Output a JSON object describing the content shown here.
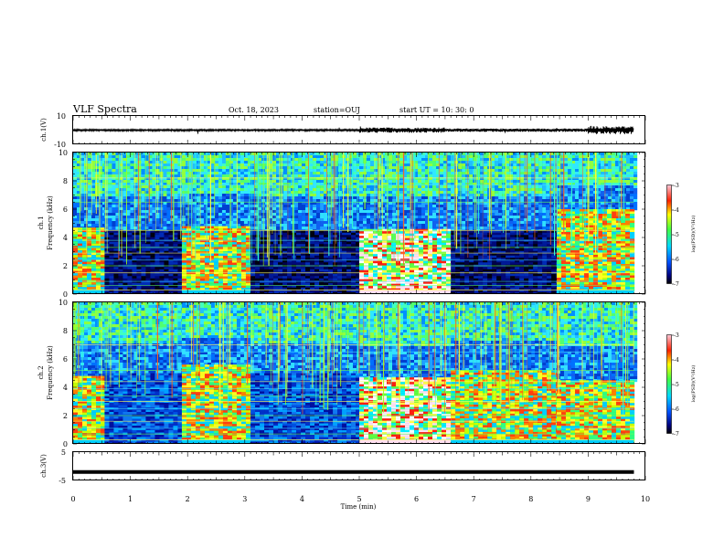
{
  "header": {
    "title": "VLF Spectra",
    "date": "Oct. 18, 2023",
    "station": "station=OUJ",
    "start": "start  UT =   10: 30: 0"
  },
  "chart_data": [
    {
      "type": "line",
      "panel": "ch1-waveform",
      "ylabel": "ch.1(V)",
      "ylim": [
        -10,
        10
      ],
      "yticks": [
        "10",
        "-10"
      ],
      "baseline_value": 0,
      "segments": [
        {
          "t": [
            0,
            5.0
          ],
          "amplitude": 0.6
        },
        {
          "t": [
            5.0,
            6.5
          ],
          "amplitude": 1.6
        },
        {
          "t": [
            6.5,
            9.0
          ],
          "amplitude": 1.0
        },
        {
          "t": [
            9.0,
            9.8
          ],
          "amplitude": 2.4
        }
      ],
      "spikes": [
        {
          "t": 2.18,
          "amp": -2.6
        },
        {
          "t": 4.65,
          "amp": 1.8
        },
        {
          "t": 5.02,
          "amp": 2.6
        },
        {
          "t": 7.55,
          "amp": -2.0
        },
        {
          "t": 8.45,
          "amp": 1.6
        },
        {
          "t": 9.05,
          "amp": 3.0
        },
        {
          "t": 9.6,
          "amp": 2.7
        }
      ]
    },
    {
      "type": "heatmap",
      "panel": "ch1-spectrogram",
      "ylabel": "Frequency  (kHz)",
      "channel_label": "ch.1",
      "ylim": [
        0,
        10
      ],
      "yticks": [
        "0",
        "2",
        "4",
        "6",
        "8",
        "10"
      ],
      "xlim": [
        0,
        10
      ],
      "data_end_min": 9.8,
      "colorbar": {
        "label": "log(PSD)(V²/Hz)",
        "range": [
          -7,
          -3
        ],
        "ticks": [
          "-3",
          "-4",
          "-5",
          "-6",
          "-7"
        ]
      },
      "segments": [
        {
          "t0": 0.0,
          "t1": 0.55,
          "level": "high",
          "band": [
            0.3,
            4.7
          ]
        },
        {
          "t0": 0.55,
          "t1": 1.9,
          "level": "low",
          "band": [
            0,
            4.5
          ]
        },
        {
          "t0": 1.9,
          "t1": 3.1,
          "level": "high",
          "band": [
            0.3,
            4.8
          ]
        },
        {
          "t0": 3.1,
          "t1": 5.0,
          "level": "low",
          "band": [
            0,
            4.5
          ]
        },
        {
          "t0": 5.0,
          "t1": 6.6,
          "level": "veryhigh",
          "band": [
            0.3,
            4.6
          ]
        },
        {
          "t0": 6.6,
          "t1": 8.45,
          "level": "low",
          "band": [
            0,
            4.5
          ]
        },
        {
          "t0": 8.45,
          "t1": 9.8,
          "level": "high",
          "band": [
            0.3,
            6.0
          ]
        }
      ],
      "lines_khz": [
        0.3,
        0.6,
        0.9,
        1.5,
        2.0,
        2.4,
        2.9,
        3.3,
        3.8,
        4.5,
        6.5,
        7.7,
        8.2
      ]
    },
    {
      "type": "heatmap",
      "panel": "ch2-spectrogram",
      "ylabel": "Frequency  (kHz)",
      "channel_label": "ch.2",
      "ylim": [
        0,
        10
      ],
      "yticks": [
        "0",
        "2",
        "4",
        "6",
        "8",
        "10"
      ],
      "xlim": [
        0,
        10
      ],
      "data_end_min": 9.8,
      "colorbar": {
        "label": "log(PSD)(V²/Hz)",
        "range": [
          -7,
          -3
        ],
        "ticks": [
          "-3",
          "-4",
          "-5",
          "-6",
          "-7"
        ]
      },
      "segments": [
        {
          "t0": 0.0,
          "t1": 0.55,
          "level": "high",
          "band": [
            0.3,
            4.8
          ]
        },
        {
          "t0": 0.55,
          "t1": 1.9,
          "level": "mid",
          "band": [
            0,
            5.0
          ]
        },
        {
          "t0": 1.9,
          "t1": 3.1,
          "level": "high",
          "band": [
            0.3,
            5.6
          ]
        },
        {
          "t0": 3.1,
          "t1": 5.0,
          "level": "mid",
          "band": [
            0,
            5.0
          ]
        },
        {
          "t0": 5.0,
          "t1": 6.6,
          "level": "veryhigh",
          "band": [
            0.3,
            4.7
          ]
        },
        {
          "t0": 6.6,
          "t1": 8.45,
          "level": "high",
          "band": [
            0.3,
            5.2
          ]
        },
        {
          "t0": 8.45,
          "t1": 9.8,
          "level": "high",
          "band": [
            0.3,
            4.5
          ]
        }
      ],
      "lines_khz": [
        0.3,
        0.7,
        1.1,
        1.6,
        2.0,
        2.5,
        3.0,
        3.4,
        3.9,
        4.4,
        5.2,
        6.5,
        7.0,
        8.2
      ]
    },
    {
      "type": "line",
      "panel": "ch3-waveform",
      "ylabel": "ch.3(V)",
      "xlabel": "Time  (min)",
      "ylim": [
        -5,
        5
      ],
      "yticks": [
        "5",
        "-5"
      ],
      "xticks": [
        "0",
        "1",
        "2",
        "3",
        "4",
        "5",
        "6",
        "7",
        "8",
        "9",
        "10"
      ],
      "constant_value": -2.0,
      "t_range": [
        0,
        9.8
      ]
    }
  ]
}
